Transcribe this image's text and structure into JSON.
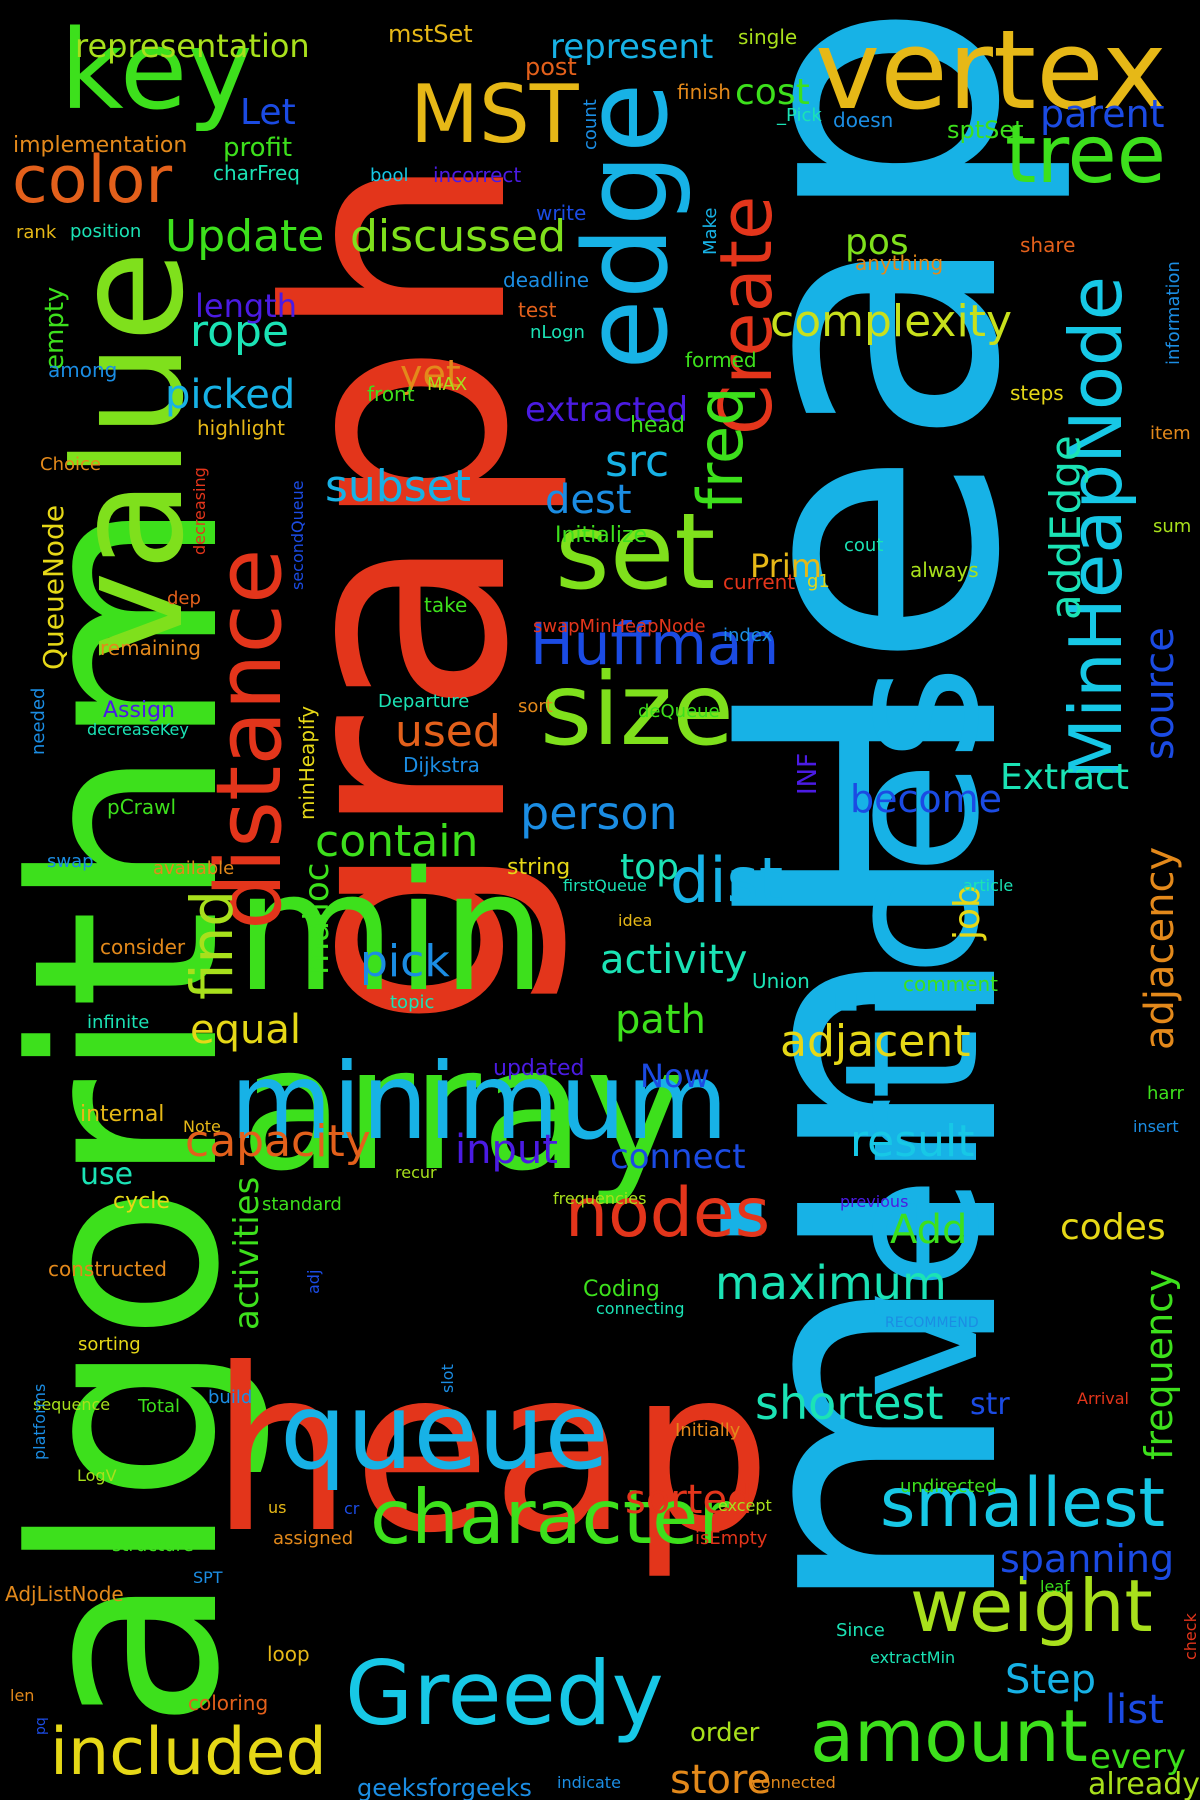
{
  "words": [
    {
      "text": "minHeap",
      "color": "#17b2e6",
      "vertical": true
    },
    {
      "text": "graph",
      "color": "#e3351b",
      "vertical": true
    },
    {
      "text": "algorithm",
      "color": "#3de01c",
      "vertical": true
    },
    {
      "text": "vertices",
      "color": "#17b2e6",
      "vertical": true
    },
    {
      "text": "heap",
      "color": "#e3351b",
      "vertical": false
    },
    {
      "text": "array",
      "color": "#3de01c",
      "vertical": false
    },
    {
      "text": "min",
      "color": "#3de01c",
      "vertical": false
    },
    {
      "text": "value",
      "color": "#7fe01c",
      "vertical": true
    },
    {
      "text": "minimum",
      "color": "#17b2e6",
      "vertical": false
    },
    {
      "text": "vertex",
      "color": "#e6b817",
      "vertical": false
    },
    {
      "text": "key",
      "color": "#3de01c",
      "vertical": false
    },
    {
      "text": "edge",
      "color": "#17b2e6",
      "vertical": true
    },
    {
      "text": "queue",
      "color": "#17b2e6",
      "vertical": false
    },
    {
      "text": "set",
      "color": "#7fe01c",
      "vertical": false
    },
    {
      "text": "size",
      "color": "#7fe01c",
      "vertical": false
    },
    {
      "text": "distance",
      "color": "#e3351b",
      "vertical": true
    },
    {
      "text": "Greedy",
      "color": "#17c8e6",
      "vertical": false
    },
    {
      "text": "character",
      "color": "#3de01c",
      "vertical": false
    },
    {
      "text": "MST",
      "color": "#e6b817",
      "vertical": false
    },
    {
      "text": "tree",
      "color": "#3de01c",
      "vertical": false
    },
    {
      "text": "MinHeapNode",
      "color": "#17c8e6",
      "vertical": true
    },
    {
      "text": "Create",
      "color": "#e3351b",
      "vertical": true
    },
    {
      "text": "color",
      "color": "#e3601b",
      "vertical": false
    },
    {
      "text": "included",
      "color": "#e6d817",
      "vertical": false
    },
    {
      "text": "amount",
      "color": "#3de01c",
      "vertical": false
    },
    {
      "text": "weight",
      "color": "#a8e01c",
      "vertical": false
    },
    {
      "text": "smallest",
      "color": "#17c8e6",
      "vertical": false
    },
    {
      "text": "nodes",
      "color": "#e3351b",
      "vertical": false
    },
    {
      "text": "Huffman",
      "color": "#1b4be3",
      "vertical": false
    },
    {
      "text": "freq",
      "color": "#3de01c",
      "vertical": true
    },
    {
      "text": "dist",
      "color": "#17b2e6",
      "vertical": false
    },
    {
      "text": "Update",
      "color": "#3de01c",
      "vertical": false
    },
    {
      "text": "discussed",
      "color": "#7fe01c",
      "vertical": false
    },
    {
      "text": "complexity",
      "color": "#c8e01c",
      "vertical": false
    },
    {
      "text": "find",
      "color": "#a8e01c",
      "vertical": true
    },
    {
      "text": "adjacent",
      "color": "#e6d817",
      "vertical": false
    },
    {
      "text": "maximum",
      "color": "#1be3b5",
      "vertical": false
    },
    {
      "text": "shortest",
      "color": "#1be3b5",
      "vertical": false
    },
    {
      "text": "capacity",
      "color": "#e3601b",
      "vertical": false
    },
    {
      "text": "contain",
      "color": "#3de01c",
      "vertical": false
    },
    {
      "text": "person",
      "color": "#1b8de3",
      "vertical": false
    },
    {
      "text": "rope",
      "color": "#1be3b5",
      "vertical": false
    },
    {
      "text": "subset",
      "color": "#17b2e6",
      "vertical": false
    },
    {
      "text": "src",
      "color": "#17b2e6",
      "vertical": false
    },
    {
      "text": "dest",
      "color": "#1b8de3",
      "vertical": false
    },
    {
      "text": "pick",
      "color": "#1b8de3",
      "vertical": false
    },
    {
      "text": "picked",
      "color": "#17b2e6",
      "vertical": false
    },
    {
      "text": "used",
      "color": "#e3601b",
      "vertical": false
    },
    {
      "text": "result",
      "color": "#17c8e6",
      "vertical": false
    },
    {
      "text": "activity",
      "color": "#1be3b5",
      "vertical": false
    },
    {
      "text": "path",
      "color": "#3de01c",
      "vertical": false
    },
    {
      "text": "equal",
      "color": "#e6d817",
      "vertical": false
    },
    {
      "text": "input",
      "color": "#4b1be3",
      "vertical": false
    },
    {
      "text": "connect",
      "color": "#1b4be3",
      "vertical": false
    },
    {
      "text": "become",
      "color": "#1b4be3",
      "vertical": false
    },
    {
      "text": "parent",
      "color": "#1b4be3",
      "vertical": false
    },
    {
      "text": "addEdge",
      "color": "#1be3b5",
      "vertical": true
    },
    {
      "text": "source",
      "color": "#1b4be3",
      "vertical": true
    },
    {
      "text": "adjacency",
      "color": "#e3891b",
      "vertical": true
    },
    {
      "text": "frequency",
      "color": "#3de01c",
      "vertical": true
    },
    {
      "text": "activities",
      "color": "#3de01c",
      "vertical": true
    },
    {
      "text": "spanning",
      "color": "#1b4be3",
      "vertical": false
    },
    {
      "text": "Step",
      "color": "#17b2e6",
      "vertical": false
    },
    {
      "text": "list",
      "color": "#1b4be3",
      "vertical": false
    },
    {
      "text": "every",
      "color": "#3de01c",
      "vertical": false
    },
    {
      "text": "already",
      "color": "#a8e01c",
      "vertical": false
    },
    {
      "text": "store",
      "color": "#e3891b",
      "vertical": false
    },
    {
      "text": "sorted",
      "color": "#e3351b",
      "vertical": false
    },
    {
      "text": "represent",
      "color": "#17b2e6",
      "vertical": false
    },
    {
      "text": "representation",
      "color": "#a8e01c",
      "vertical": false
    },
    {
      "text": "Let",
      "color": "#1b4be3",
      "vertical": false
    },
    {
      "text": "cost",
      "color": "#3de01c",
      "vertical": false
    },
    {
      "text": "pos",
      "color": "#7fe01c",
      "vertical": false
    },
    {
      "text": "length",
      "color": "#4b1be3",
      "vertical": false
    },
    {
      "text": "yet",
      "color": "#e3891b",
      "vertical": false
    },
    {
      "text": "extracted",
      "color": "#4b1be3",
      "vertical": false
    },
    {
      "text": "Prim",
      "color": "#e6b817",
      "vertical": false
    },
    {
      "text": "top",
      "color": "#1be3b5",
      "vertical": false
    },
    {
      "text": "job",
      "color": "#e6d817",
      "vertical": true
    },
    {
      "text": "malloc",
      "color": "#3de01c",
      "vertical": true
    },
    {
      "text": "Extract",
      "color": "#1be3b5",
      "vertical": false
    },
    {
      "text": "Add",
      "color": "#3de01c",
      "vertical": false
    },
    {
      "text": "codes",
      "color": "#e6d817",
      "vertical": false
    },
    {
      "text": "Now",
      "color": "#1b4be3",
      "vertical": false
    },
    {
      "text": "use",
      "color": "#1be3b5",
      "vertical": false
    },
    {
      "text": "str",
      "color": "#1b4be3",
      "vertical": false
    },
    {
      "text": "QueueNode",
      "color": "#e6d817",
      "vertical": true
    },
    {
      "text": "empty",
      "color": "#3de01c",
      "vertical": true
    },
    {
      "text": "geeksforgeeks",
      "color": "#1b8de3",
      "vertical": false
    },
    {
      "text": "order",
      "color": "#a8e01c",
      "vertical": false
    },
    {
      "text": "INF",
      "color": "#4b1be3",
      "vertical": true
    },
    {
      "text": "mstSet",
      "color": "#e6b817",
      "vertical": false
    },
    {
      "text": "post",
      "color": "#e3601b",
      "vertical": false
    },
    {
      "text": "profit",
      "color": "#3de01c",
      "vertical": false
    },
    {
      "text": "sptSet",
      "color": "#3de01c",
      "vertical": false
    },
    {
      "text": "finish",
      "color": "#e3891b",
      "vertical": false
    },
    {
      "text": "doesn",
      "color": "#1b8de3",
      "vertical": false
    },
    {
      "text": "single",
      "color": "#a8e01c",
      "vertical": false
    },
    {
      "text": "_Pick",
      "color": "#1be3b5",
      "vertical": false
    },
    {
      "text": "implementation",
      "color": "#e3891b",
      "vertical": false
    },
    {
      "text": "charFreq",
      "color": "#1be3b5",
      "vertical": false
    },
    {
      "text": "bool",
      "color": "#17c8e6",
      "vertical": false
    },
    {
      "text": "incorrect",
      "color": "#4b1be3",
      "vertical": false
    },
    {
      "text": "count",
      "color": "#1b8de3",
      "vertical": true
    },
    {
      "text": "write",
      "color": "#1b4be3",
      "vertical": false
    },
    {
      "text": "rank",
      "color": "#e6b817",
      "vertical": false
    },
    {
      "text": "position",
      "color": "#1be3b5",
      "vertical": false
    },
    {
      "text": "share",
      "color": "#e3601b",
      "vertical": false
    },
    {
      "text": "anything",
      "color": "#e3891b",
      "vertical": false
    },
    {
      "text": "Make",
      "color": "#17b2e6",
      "vertical": true
    },
    {
      "text": "deadline",
      "color": "#1b8de3",
      "vertical": false
    },
    {
      "text": "test",
      "color": "#e3601b",
      "vertical": false
    },
    {
      "text": "nLogn",
      "color": "#1be3b5",
      "vertical": false
    },
    {
      "text": "formed",
      "color": "#3de01c",
      "vertical": false
    },
    {
      "text": "information",
      "color": "#1b8de3",
      "vertical": true
    },
    {
      "text": "among",
      "color": "#1b8de3",
      "vertical": false
    },
    {
      "text": "front",
      "color": "#3de01c",
      "vertical": false
    },
    {
      "text": "MAX",
      "color": "#a8e01c",
      "vertical": false
    },
    {
      "text": "steps",
      "color": "#e6d817",
      "vertical": false
    },
    {
      "text": "highlight",
      "color": "#e6b817",
      "vertical": false
    },
    {
      "text": "head",
      "color": "#3de01c",
      "vertical": false
    },
    {
      "text": "item",
      "color": "#e3891b",
      "vertical": false
    },
    {
      "text": "Choice",
      "color": "#e3891b",
      "vertical": false
    },
    {
      "text": "decreasing",
      "color": "#e3351b",
      "vertical": true
    },
    {
      "text": "secondQueue",
      "color": "#1b4be3",
      "vertical": true
    },
    {
      "text": "Initialize",
      "color": "#3de01c",
      "vertical": false
    },
    {
      "text": "sum",
      "color": "#a8e01c",
      "vertical": false
    },
    {
      "text": "cout",
      "color": "#1be3b5",
      "vertical": false
    },
    {
      "text": "always",
      "color": "#a8e01c",
      "vertical": false
    },
    {
      "text": "current",
      "color": "#e3351b",
      "vertical": false
    },
    {
      "text": "g1",
      "color": "#e6d817",
      "vertical": false
    },
    {
      "text": "dep",
      "color": "#e3601b",
      "vertical": false
    },
    {
      "text": "take",
      "color": "#3de01c",
      "vertical": false
    },
    {
      "text": "swapMinHeapNode",
      "color": "#e3351b",
      "vertical": false
    },
    {
      "text": "index",
      "color": "#1b8de3",
      "vertical": false
    },
    {
      "text": "remaining",
      "color": "#e3891b",
      "vertical": false
    },
    {
      "text": "Assign",
      "color": "#4b1be3",
      "vertical": false
    },
    {
      "text": "Departure",
      "color": "#1be3b5",
      "vertical": false
    },
    {
      "text": "sort",
      "color": "#e3891b",
      "vertical": false
    },
    {
      "text": "deQueue",
      "color": "#3de01c",
      "vertical": false
    },
    {
      "text": "decreaseKey",
      "color": "#1be3b5",
      "vertical": false
    },
    {
      "text": "needed",
      "color": "#1b8de3",
      "vertical": true
    },
    {
      "text": "minHeapify",
      "color": "#e6d817",
      "vertical": true
    },
    {
      "text": "Dijkstra",
      "color": "#1b8de3",
      "vertical": false
    },
    {
      "text": "pCrawl",
      "color": "#3de01c",
      "vertical": false
    },
    {
      "text": "swap",
      "color": "#1b8de3",
      "vertical": false
    },
    {
      "text": "available",
      "color": "#e3891b",
      "vertical": false
    },
    {
      "text": "string",
      "color": "#e6d817",
      "vertical": false
    },
    {
      "text": "firstQueue",
      "color": "#1be3b5",
      "vertical": false
    },
    {
      "text": "article",
      "color": "#1be3b5",
      "vertical": false
    },
    {
      "text": "idea",
      "color": "#e6b817",
      "vertical": false
    },
    {
      "text": "consider",
      "color": "#e3891b",
      "vertical": false
    },
    {
      "text": "Union",
      "color": "#1be3b5",
      "vertical": false
    },
    {
      "text": "comment",
      "color": "#3de01c",
      "vertical": false
    },
    {
      "text": "topic",
      "color": "#1be3b5",
      "vertical": false
    },
    {
      "text": "infinite",
      "color": "#1be3b5",
      "vertical": false
    },
    {
      "text": "updated",
      "color": "#4b1be3",
      "vertical": false
    },
    {
      "text": "internal",
      "color": "#e6b817",
      "vertical": false
    },
    {
      "text": "harr",
      "color": "#3de01c",
      "vertical": false
    },
    {
      "text": "Note",
      "color": "#e6b817",
      "vertical": false
    },
    {
      "text": "insert",
      "color": "#1b8de3",
      "vertical": false
    },
    {
      "text": "recur",
      "color": "#a8e01c",
      "vertical": false
    },
    {
      "text": "standard",
      "color": "#3de01c",
      "vertical": false
    },
    {
      "text": "cycle",
      "color": "#e6d817",
      "vertical": false
    },
    {
      "text": "frequencies",
      "color": "#a8e01c",
      "vertical": false
    },
    {
      "text": "previous",
      "color": "#4b1be3",
      "vertical": false
    },
    {
      "text": "constructed",
      "color": "#e3891b",
      "vertical": false
    },
    {
      "text": "Coding",
      "color": "#3de01c",
      "vertical": false
    },
    {
      "text": "adj",
      "color": "#1b4be3",
      "vertical": true
    },
    {
      "text": "connecting",
      "color": "#1be3b5",
      "vertical": false
    },
    {
      "text": "RECOMMEND",
      "color": "#1b8de3",
      "vertical": false
    },
    {
      "text": "sorting",
      "color": "#e6d817",
      "vertical": false
    },
    {
      "text": "build",
      "color": "#1b8de3",
      "vertical": false
    },
    {
      "text": "slot",
      "color": "#1b8de3",
      "vertical": true
    },
    {
      "text": "Arrival",
      "color": "#e3351b",
      "vertical": false
    },
    {
      "text": "sequence",
      "color": "#a8e01c",
      "vertical": false
    },
    {
      "text": "Total",
      "color": "#3de01c",
      "vertical": false
    },
    {
      "text": "platforms",
      "color": "#1b8de3",
      "vertical": true
    },
    {
      "text": "Initially",
      "color": "#e3891b",
      "vertical": false
    },
    {
      "text": "LogV",
      "color": "#a8e01c",
      "vertical": false
    },
    {
      "text": "undirected",
      "color": "#3de01c",
      "vertical": false
    },
    {
      "text": "us",
      "color": "#e6b817",
      "vertical": false
    },
    {
      "text": "cr",
      "color": "#1b4be3",
      "vertical": false
    },
    {
      "text": "except",
      "color": "#a8e01c",
      "vertical": false
    },
    {
      "text": "structure",
      "color": "#3de01c",
      "vertical": false
    },
    {
      "text": "assigned",
      "color": "#e3891b",
      "vertical": false
    },
    {
      "text": "isEmpty",
      "color": "#e3351b",
      "vertical": false
    },
    {
      "text": "SPT",
      "color": "#1b8de3",
      "vertical": false
    },
    {
      "text": "AdjListNode",
      "color": "#e3891b",
      "vertical": false
    },
    {
      "text": "leaf",
      "color": "#3de01c",
      "vertical": false
    },
    {
      "text": "Since",
      "color": "#1be3b5",
      "vertical": false
    },
    {
      "text": "loop",
      "color": "#e6b817",
      "vertical": false
    },
    {
      "text": "extractMin",
      "color": "#1be3b5",
      "vertical": false
    },
    {
      "text": "check",
      "color": "#e3351b",
      "vertical": true
    },
    {
      "text": "len",
      "color": "#e3891b",
      "vertical": false
    },
    {
      "text": "pq",
      "color": "#1b4be3",
      "vertical": true
    },
    {
      "text": "coloring",
      "color": "#e3601b",
      "vertical": false
    },
    {
      "text": "indicate",
      "color": "#1b8de3",
      "vertical": false
    },
    {
      "text": "connected",
      "color": "#e3891b",
      "vertical": false
    }
  ]
}
